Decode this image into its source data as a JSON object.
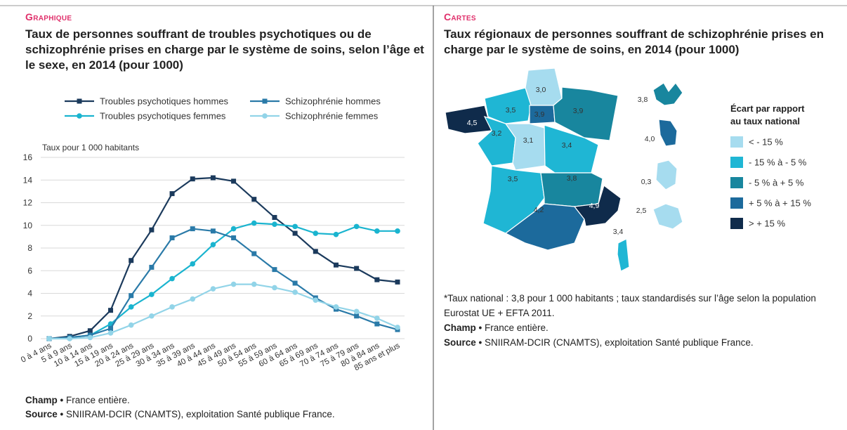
{
  "chart_data": {
    "type": "line",
    "kicker": "Graphique",
    "title": "Taux de personnes souffrant de troubles psychotiques ou de schizophrénie prises en charge par le système de soins, selon l’âge et le sexe, en 2014 (pour 1000)",
    "y_label": "Taux pour 1 000 habitants",
    "categories": [
      "0 à 4 ans",
      "5 à 9 ans",
      "10 à 14 ans",
      "15 à 19 ans",
      "20 à 24 ans",
      "25 à 29 ans",
      "30 à 34 ans",
      "35 à 39 ans",
      "40 à 44 ans",
      "45 à 49 ans",
      "50 à 54 ans",
      "55 à 59 ans",
      "60 à 64 ans",
      "65 à 69 ans",
      "70 à 74 ans",
      "75 à 79 ans",
      "80 à 84 ans",
      "85 ans et plus"
    ],
    "series": [
      {
        "name": "Troubles psychotiques hommes",
        "color": "#1b3a5c",
        "marker": "square",
        "values": [
          0,
          0.2,
          0.7,
          2.5,
          6.9,
          9.6,
          12.8,
          14.1,
          14.2,
          13.9,
          12.3,
          10.7,
          9.3,
          7.7,
          6.5,
          6.2,
          5.2,
          5.0
        ]
      },
      {
        "name": "Troubles psychotiques femmes",
        "color": "#1ab4cf",
        "marker": "circle",
        "values": [
          0,
          0.1,
          0.3,
          1.3,
          2.8,
          3.9,
          5.3,
          6.6,
          8.3,
          9.7,
          10.2,
          10.1,
          9.9,
          9.3,
          9.2,
          9.9,
          9.5,
          9.5
        ]
      },
      {
        "name": "Schizophrénie hommes",
        "color": "#2a7aa8",
        "marker": "square",
        "values": [
          0,
          0.1,
          0.3,
          0.9,
          3.8,
          6.3,
          8.9,
          9.7,
          9.5,
          8.9,
          7.5,
          6.1,
          4.9,
          3.6,
          2.6,
          2.0,
          1.3,
          0.8
        ]
      },
      {
        "name": "Schizophrénie femmes",
        "color": "#92d4e8",
        "marker": "circle",
        "values": [
          0,
          0,
          0.1,
          0.5,
          1.2,
          2.0,
          2.8,
          3.5,
          4.4,
          4.8,
          4.8,
          4.5,
          4.1,
          3.4,
          2.8,
          2.4,
          1.8,
          1.0
        ]
      }
    ],
    "ylim": [
      0,
      16
    ],
    "yticks": [
      0,
      2,
      4,
      6,
      8,
      10,
      12,
      14,
      16
    ],
    "grid": true,
    "legend": "top",
    "notes": [
      {
        "label": "Champ •",
        "text": "France entière."
      },
      {
        "label": "Source •",
        "text": "SNIIRAM-DCIR (CNAMTS), exploitation Santé publique France."
      }
    ]
  },
  "map": {
    "kicker": "Cartes",
    "title": "Taux régionaux de personnes souffrant de schizophrénie prises en charge par le système de soins, en 2014 (pour 1000)",
    "legend_title": "Écart par rapport au taux national",
    "classes": [
      {
        "label": "< - 15 %",
        "color": "#a6dcef"
      },
      {
        "label": "- 15 % à - 5 %",
        "color": "#1fb6d4"
      },
      {
        "label": "- 5 % à + 5 %",
        "color": "#18869e"
      },
      {
        "label": "+ 5 % à + 15 %",
        "color": "#1c6a9c"
      },
      {
        "label": "> + 15 %",
        "color": "#0f2b4b"
      }
    ],
    "regions": [
      {
        "label": "3,0",
        "color": "#a6dcef"
      },
      {
        "label": "3,5",
        "color": "#1fb6d4"
      },
      {
        "label": "3,9",
        "color": "#1c6a9c"
      },
      {
        "label": "3,9",
        "color": "#18869e"
      },
      {
        "label": "4,5",
        "color": "#0f2b4b"
      },
      {
        "label": "3,2",
        "color": "#1fb6d4"
      },
      {
        "label": "3,1",
        "color": "#a6dcef"
      },
      {
        "label": "3,4",
        "color": "#1fb6d4"
      },
      {
        "label": "3,5",
        "color": "#1fb6d4"
      },
      {
        "label": "3,8",
        "color": "#18869e"
      },
      {
        "label": "4,2",
        "color": "#1c6a9c"
      },
      {
        "label": "4,9",
        "color": "#0f2b4b"
      },
      {
        "label": "3,4",
        "color": "#1fb6d4"
      },
      {
        "label": "3,8",
        "color": "#18869e"
      },
      {
        "label": "4,0",
        "color": "#1c6a9c"
      },
      {
        "label": "0,3",
        "color": "#a6dcef"
      },
      {
        "label": "2,5",
        "color": "#a6dcef"
      }
    ],
    "footnote": "*Taux national : 3,8 pour 1 000 habitants ; taux standardisés sur l’âge selon la population Eurostat UE + EFTA 2011.",
    "notes": [
      {
        "label": "Champ •",
        "text": "France entière."
      },
      {
        "label": "Source •",
        "text": "SNIIRAM-DCIR (CNAMTS), exploitation Santé publique France."
      }
    ]
  }
}
